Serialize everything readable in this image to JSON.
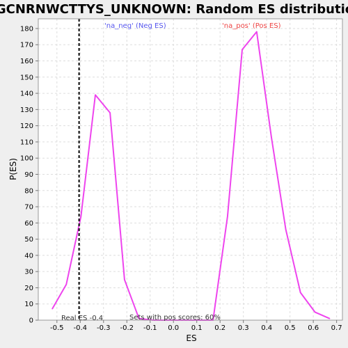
{
  "chart_data": {
    "type": "line",
    "title": "GGCNRNWCTTYS_UNKNOWN: Random ES distribution",
    "xlabel": "ES",
    "ylabel": "P(ES)",
    "xlim": [
      -0.58,
      0.725
    ],
    "ylim": [
      0,
      186
    ],
    "xticks": [
      -0.5,
      -0.4,
      -0.3,
      -0.2,
      -0.1,
      0.0,
      0.1,
      0.2,
      0.3,
      0.4,
      0.5,
      0.6,
      0.7
    ],
    "xtick_labels": [
      "-0.5",
      "-0.4",
      "-0.3",
      "-0.2",
      "-0.1",
      "0.0",
      "0.1",
      "0.2",
      "0.3",
      "0.4",
      "0.5",
      "0.6",
      "0.7"
    ],
    "yticks": [
      0,
      10,
      20,
      30,
      40,
      50,
      60,
      70,
      80,
      90,
      100,
      110,
      120,
      130,
      140,
      150,
      160,
      170,
      180
    ],
    "ytick_labels": [
      "0",
      "10",
      "20",
      "30",
      "40",
      "50",
      "60",
      "70",
      "80",
      "90",
      "100",
      "110",
      "120",
      "130",
      "140",
      "150",
      "160",
      "170",
      "180"
    ],
    "grid": true,
    "series": [
      {
        "color": "#ee44ee",
        "x": [
          -0.52,
          -0.46,
          -0.397,
          -0.335,
          -0.272,
          -0.21,
          -0.148,
          -0.085,
          0.17,
          0.232,
          0.295,
          0.357,
          0.42,
          0.482,
          0.545,
          0.607,
          0.67
        ],
        "y": [
          7,
          22,
          64,
          139,
          128,
          25,
          1,
          0,
          0,
          64,
          167,
          178,
          113,
          56,
          17,
          5,
          1
        ]
      }
    ],
    "vline": {
      "x": -0.405,
      "style": "dashed",
      "color": "#000000"
    },
    "legend": [
      {
        "text": "'na_neg' (Neg ES)",
        "color": "#5555ee"
      },
      {
        "text": "'na_pos' (Pos ES)",
        "color": "#ee4444"
      }
    ],
    "annotations": {
      "real_es": "Real ES -0.4",
      "pos_scores": "Sets with pos scores: 60%"
    }
  }
}
